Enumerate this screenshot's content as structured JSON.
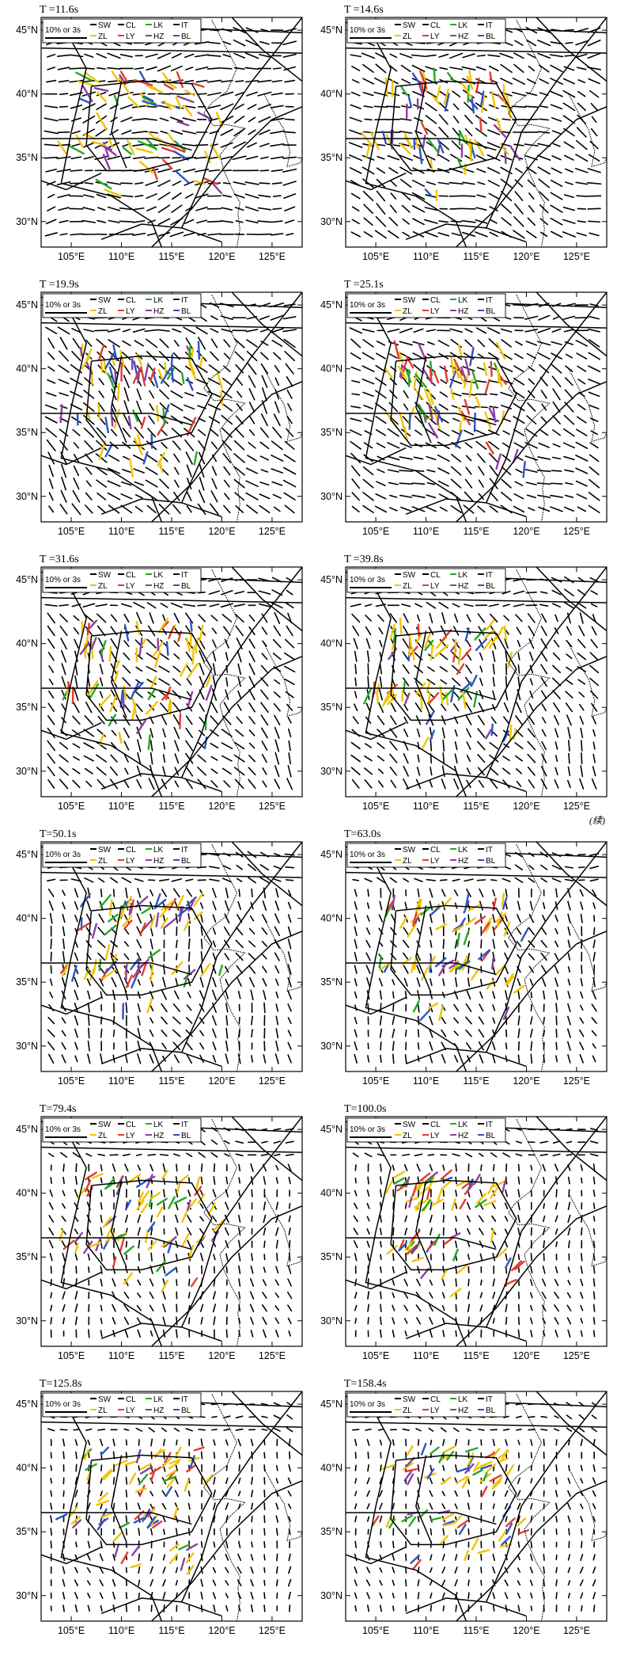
{
  "figure": {
    "continuation_label": "(续)",
    "legend": {
      "scale_label": "10% or 3s",
      "items": [
        {
          "name": "SW",
          "color": "#000000"
        },
        {
          "name": "CL",
          "color": "#000000"
        },
        {
          "name": "LK",
          "color": "#22aa22"
        },
        {
          "name": "IT",
          "color": "#111111"
        },
        {
          "name": "ZL",
          "color": "#f0c400"
        },
        {
          "name": "LY",
          "color": "#e23b2e"
        },
        {
          "name": "HZ",
          "color": "#8a3fa0"
        },
        {
          "name": "BL",
          "color": "#2b54c4"
        }
      ]
    }
  },
  "chart_data": [
    {
      "type": "vector-field-map",
      "title": "T =11.6s",
      "xlabel_ticks": [
        "105°E",
        "110°E",
        "115°E",
        "120°E",
        "125°E"
      ],
      "ylabel_ticks": [
        "30°N",
        "35°N",
        "40°N",
        "45°N"
      ],
      "xlim": [
        102,
        128
      ],
      "ylim": [
        28,
        46
      ],
      "field_angle_deg": -8,
      "field_intensity": 1.0
    },
    {
      "type": "vector-field-map",
      "title": "T =14.6s",
      "xlabel_ticks": [
        "105°E",
        "110°E",
        "115°E",
        "120°E",
        "125°E"
      ],
      "ylabel_ticks": [
        "30°N",
        "35°N",
        "40°N",
        "45°N"
      ],
      "xlim": [
        102,
        128
      ],
      "ylim": [
        28,
        46
      ],
      "field_angle_deg": 25,
      "field_intensity": 1.0
    },
    {
      "type": "vector-field-map",
      "title": "T =19.9s",
      "xlabel_ticks": [
        "105°E",
        "110°E",
        "115°E",
        "120°E",
        "125°E"
      ],
      "ylabel_ticks": [
        "30°N",
        "35°N",
        "40°N",
        "45°N"
      ],
      "xlim": [
        102,
        128
      ],
      "ylim": [
        28,
        46
      ],
      "field_angle_deg": 45,
      "field_intensity": 1.0
    },
    {
      "type": "vector-field-map",
      "title": "T =25.1s",
      "xlabel_ticks": [
        "105°E",
        "110°E",
        "115°E",
        "120°E",
        "125°E"
      ],
      "ylabel_ticks": [
        "30°N",
        "35°N",
        "40°N",
        "45°N"
      ],
      "xlim": [
        102,
        128
      ],
      "ylim": [
        28,
        46
      ],
      "field_angle_deg": 30,
      "field_intensity": 0.95
    },
    {
      "type": "vector-field-map",
      "title": "T =31.6s",
      "xlabel_ticks": [
        "105°E",
        "110°E",
        "115°E",
        "120°E",
        "125°E"
      ],
      "ylabel_ticks": [
        "30°N",
        "35°N",
        "40°N",
        "45°N"
      ],
      "xlim": [
        102,
        128
      ],
      "ylim": [
        28,
        46
      ],
      "field_angle_deg": 55,
      "field_intensity": 0.85
    },
    {
      "type": "vector-field-map",
      "title": "T =39.8s",
      "xlabel_ticks": [
        "105°E",
        "110°E",
        "115°E",
        "120°E",
        "125°E"
      ],
      "ylabel_ticks": [
        "30°N",
        "35°N",
        "40°N",
        "45°N"
      ],
      "xlim": [
        102,
        128
      ],
      "ylim": [
        28,
        46
      ],
      "field_angle_deg": 60,
      "field_intensity": 0.75
    },
    {
      "type": "vector-field-map",
      "title": "T=50.1s",
      "xlabel_ticks": [
        "105°E",
        "110°E",
        "115°E",
        "120°E",
        "125°E"
      ],
      "ylabel_ticks": [
        "30°N",
        "35°N",
        "40°N",
        "45°N"
      ],
      "xlim": [
        102,
        128
      ],
      "ylim": [
        28,
        46
      ],
      "field_angle_deg": 70,
      "field_intensity": 0.65
    },
    {
      "type": "vector-field-map",
      "title": "T=63.0s",
      "xlabel_ticks": [
        "105°E",
        "110°E",
        "115°E",
        "120°E",
        "125°E"
      ],
      "ylabel_ticks": [
        "30°N",
        "35°N",
        "40°N",
        "45°N"
      ],
      "xlim": [
        102,
        128
      ],
      "ylim": [
        28,
        46
      ],
      "field_angle_deg": 75,
      "field_intensity": 0.55
    },
    {
      "type": "vector-field-map",
      "title": "T=79.4s",
      "xlabel_ticks": [
        "105°E",
        "110°E",
        "115°E",
        "120°E",
        "125°E"
      ],
      "ylabel_ticks": [
        "30°N",
        "35°N",
        "40°N",
        "45°N"
      ],
      "xlim": [
        102,
        128
      ],
      "ylim": [
        28,
        46
      ],
      "field_angle_deg": 80,
      "field_intensity": 0.45
    },
    {
      "type": "vector-field-map",
      "title": "T=100.0s",
      "xlabel_ticks": [
        "105°E",
        "110°E",
        "115°E",
        "120°E",
        "125°E"
      ],
      "ylabel_ticks": [
        "30°N",
        "35°N",
        "40°N",
        "45°N"
      ],
      "xlim": [
        102,
        128
      ],
      "ylim": [
        28,
        46
      ],
      "field_angle_deg": 82,
      "field_intensity": 0.4
    },
    {
      "type": "vector-field-map",
      "title": "T=125.8s",
      "xlabel_ticks": [
        "105°E",
        "110°E",
        "115°E",
        "120°E",
        "125°E"
      ],
      "ylabel_ticks": [
        "30°N",
        "35°N",
        "40°N",
        "45°N"
      ],
      "xlim": [
        102,
        128
      ],
      "ylim": [
        28,
        46
      ],
      "field_angle_deg": 85,
      "field_intensity": 0.35
    },
    {
      "type": "vector-field-map",
      "title": "T=158.4s",
      "xlabel_ticks": [
        "105°E",
        "110°E",
        "115°E",
        "120°E",
        "125°E"
      ],
      "ylabel_ticks": [
        "30°N",
        "35°N",
        "40°N",
        "45°N"
      ],
      "xlim": [
        102,
        128
      ],
      "ylim": [
        28,
        46
      ],
      "field_angle_deg": 88,
      "field_intensity": 0.3
    }
  ]
}
